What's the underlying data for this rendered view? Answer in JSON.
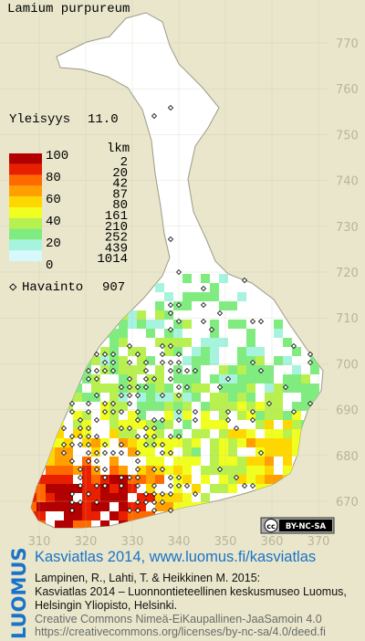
{
  "title": "Lamium purpureum",
  "frequency": {
    "label": "Yleisyys",
    "value": "11.0"
  },
  "legend": {
    "scale_labels": [
      "100",
      "80",
      "60",
      "40",
      "20",
      "0"
    ],
    "count_header": "lkm",
    "classes": [
      {
        "count": "2",
        "color": "#b30000"
      },
      {
        "count": "20",
        "color": "#e82000"
      },
      {
        "count": "42",
        "color": "#ff6a00"
      },
      {
        "count": "87",
        "color": "#ffa000"
      },
      {
        "count": "80",
        "color": "#ffd700"
      },
      {
        "count": "161",
        "color": "#f0ff20"
      },
      {
        "count": "210",
        "color": "#b8f050"
      },
      {
        "count": "252",
        "color": "#80ec80"
      },
      {
        "count": "439",
        "color": "#a6f3de"
      },
      {
        "count": "1014",
        "color": "#d6f9fb"
      }
    ],
    "observation_label": "Havainto",
    "observation_count": "907"
  },
  "grid": {
    "northing": [
      "770",
      "760",
      "750",
      "740",
      "730",
      "720",
      "710",
      "700",
      "690",
      "680",
      "670"
    ],
    "easting": [
      "310",
      "320",
      "330",
      "340",
      "350",
      "360",
      "370"
    ]
  },
  "license_badge": {
    "cc": "cc",
    "text": "BY-NC-SA"
  },
  "footer": {
    "brand": "LUOMUS",
    "headline": "Kasviatlas 2014, www.luomus.fi/kasviatlas",
    "citation": [
      "Lampinen, R., Lahti, T. & Heikkinen M. 2015:",
      "Kasviatlas 2014 – Luonnontieteellinen keskusmuseo Luomus,",
      "Helsingin Yliopisto, Helsinki."
    ],
    "license": [
      "Creative Commons Nimeä-EiKaupallinen-JaaSamoin 4.0",
      "https://creativecommons.org/licenses/by-nc-sa/4.0/deed.fi"
    ]
  }
}
